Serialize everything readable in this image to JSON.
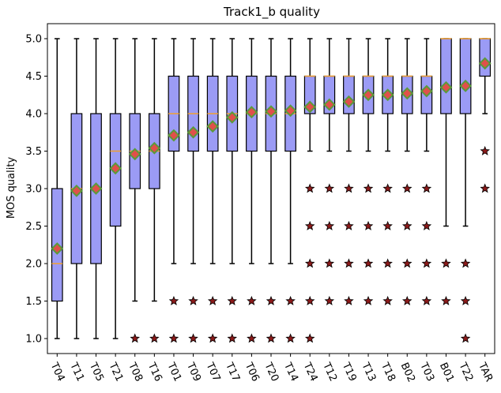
{
  "chart_data": {
    "type": "box",
    "title": "Track1_b quality",
    "xlabel": "",
    "ylabel": "MOS quality",
    "ylim": [
      0.8,
      5.2
    ],
    "yticks": [
      "1.0",
      "1.5",
      "2.0",
      "2.5",
      "3.0",
      "3.5",
      "4.0",
      "4.5",
      "5.0"
    ],
    "grid": false,
    "colors": {
      "box_fill": "#9b9bf5",
      "box_edge": "#000000",
      "median": "#f0a030",
      "mean_marker": "#e0504a",
      "mean_marker_edge": "#5a9a3a",
      "outlier": "#8b1a1a"
    },
    "categories": [
      "T04",
      "T11",
      "T05",
      "T21",
      "T08",
      "T16",
      "T01",
      "T09",
      "T07",
      "T17",
      "T06",
      "T20",
      "T14",
      "T24",
      "T12",
      "T19",
      "T13",
      "T18",
      "B02",
      "T03",
      "B01",
      "T22",
      "TAR"
    ],
    "boxes": [
      {
        "label": "T04",
        "whislo": 1.0,
        "q1": 1.5,
        "med": 2.0,
        "q3": 3.0,
        "whishi": 5.0,
        "mean": 2.2,
        "fliers": []
      },
      {
        "label": "T11",
        "whislo": 1.0,
        "q1": 2.0,
        "med": 3.0,
        "q3": 4.0,
        "whishi": 5.0,
        "mean": 2.97,
        "fliers": []
      },
      {
        "label": "T05",
        "whislo": 1.0,
        "q1": 2.0,
        "med": 3.0,
        "q3": 4.0,
        "whishi": 5.0,
        "mean": 3.0,
        "fliers": []
      },
      {
        "label": "T21",
        "whislo": 1.0,
        "q1": 2.5,
        "med": 3.5,
        "q3": 4.0,
        "whishi": 5.0,
        "mean": 3.27,
        "fliers": []
      },
      {
        "label": "T08",
        "whislo": 1.5,
        "q1": 3.0,
        "med": 3.5,
        "q3": 4.0,
        "whishi": 5.0,
        "mean": 3.46,
        "fliers": [
          1.0
        ]
      },
      {
        "label": "T16",
        "whislo": 1.5,
        "q1": 3.0,
        "med": 3.5,
        "q3": 4.0,
        "whishi": 5.0,
        "mean": 3.54,
        "fliers": [
          1.0
        ]
      },
      {
        "label": "T01",
        "whislo": 2.0,
        "q1": 3.5,
        "med": 4.0,
        "q3": 4.5,
        "whishi": 5.0,
        "mean": 3.71,
        "fliers": [
          1.5,
          1.0
        ]
      },
      {
        "label": "T09",
        "whislo": 2.0,
        "q1": 3.5,
        "med": 4.0,
        "q3": 4.5,
        "whishi": 5.0,
        "mean": 3.75,
        "fliers": [
          1.5,
          1.0
        ]
      },
      {
        "label": "T07",
        "whislo": 2.0,
        "q1": 3.5,
        "med": 4.0,
        "q3": 4.5,
        "whishi": 5.0,
        "mean": 3.83,
        "fliers": [
          1.5,
          1.0
        ]
      },
      {
        "label": "T17",
        "whislo": 2.0,
        "q1": 3.5,
        "med": 4.0,
        "q3": 4.5,
        "whishi": 5.0,
        "mean": 3.95,
        "fliers": [
          1.5,
          1.0
        ]
      },
      {
        "label": "T06",
        "whislo": 2.0,
        "q1": 3.5,
        "med": 4.0,
        "q3": 4.5,
        "whishi": 5.0,
        "mean": 4.02,
        "fliers": [
          1.5,
          1.0
        ]
      },
      {
        "label": "T20",
        "whislo": 2.0,
        "q1": 3.5,
        "med": 4.0,
        "q3": 4.5,
        "whishi": 5.0,
        "mean": 4.03,
        "fliers": [
          1.5,
          1.0
        ]
      },
      {
        "label": "T14",
        "whislo": 2.0,
        "q1": 3.5,
        "med": 4.0,
        "q3": 4.5,
        "whishi": 5.0,
        "mean": 4.04,
        "fliers": [
          1.5,
          1.0
        ]
      },
      {
        "label": "T24",
        "whislo": 3.5,
        "q1": 4.0,
        "med": 4.5,
        "q3": 4.5,
        "whishi": 5.0,
        "mean": 4.09,
        "fliers": [
          3.0,
          2.5,
          2.0,
          1.5,
          1.0
        ]
      },
      {
        "label": "T12",
        "whislo": 3.5,
        "q1": 4.0,
        "med": 4.5,
        "q3": 4.5,
        "whishi": 5.0,
        "mean": 4.12,
        "fliers": [
          3.0,
          2.5,
          2.0,
          1.5
        ]
      },
      {
        "label": "T19",
        "whislo": 3.5,
        "q1": 4.0,
        "med": 4.5,
        "q3": 4.5,
        "whishi": 5.0,
        "mean": 4.16,
        "fliers": [
          3.0,
          2.5,
          2.0,
          1.5
        ]
      },
      {
        "label": "T13",
        "whislo": 3.5,
        "q1": 4.0,
        "med": 4.5,
        "q3": 4.5,
        "whishi": 5.0,
        "mean": 4.25,
        "fliers": [
          3.0,
          2.5,
          2.0,
          1.5
        ]
      },
      {
        "label": "T18",
        "whislo": 3.5,
        "q1": 4.0,
        "med": 4.5,
        "q3": 4.5,
        "whishi": 5.0,
        "mean": 4.25,
        "fliers": [
          3.0,
          2.5,
          2.0,
          1.5
        ]
      },
      {
        "label": "B02",
        "whislo": 3.5,
        "q1": 4.0,
        "med": 4.5,
        "q3": 4.5,
        "whishi": 5.0,
        "mean": 4.27,
        "fliers": [
          3.0,
          2.5,
          2.0,
          1.5
        ]
      },
      {
        "label": "T03",
        "whislo": 3.5,
        "q1": 4.0,
        "med": 4.5,
        "q3": 4.5,
        "whishi": 5.0,
        "mean": 4.3,
        "fliers": [
          3.0,
          2.5,
          2.0,
          1.5
        ]
      },
      {
        "label": "B01",
        "whislo": 2.5,
        "q1": 4.0,
        "med": 5.0,
        "q3": 5.0,
        "whishi": 5.0,
        "mean": 4.35,
        "fliers": [
          2.0,
          1.5
        ]
      },
      {
        "label": "T22",
        "whislo": 2.5,
        "q1": 4.0,
        "med": 5.0,
        "q3": 5.0,
        "whishi": 5.0,
        "mean": 4.37,
        "fliers": [
          2.0,
          1.5,
          1.0
        ]
      },
      {
        "label": "TAR",
        "whislo": 4.0,
        "q1": 4.5,
        "med": 5.0,
        "q3": 5.0,
        "whishi": 5.0,
        "mean": 4.67,
        "fliers": [
          3.5,
          3.0
        ]
      }
    ]
  }
}
